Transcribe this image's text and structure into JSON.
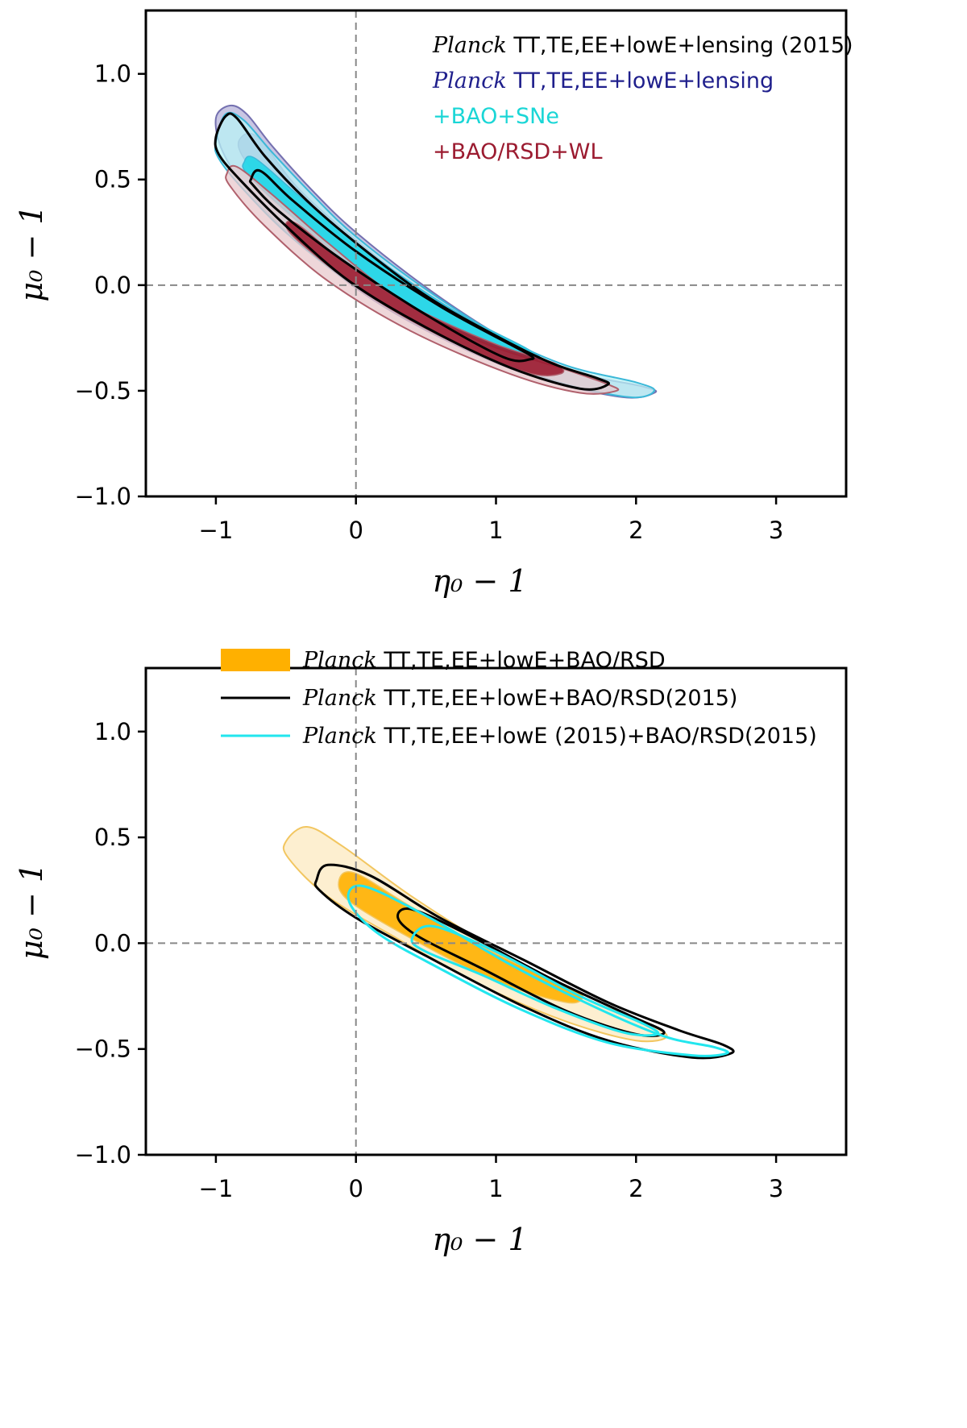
{
  "chart_data": [
    {
      "type": "contour",
      "title": "",
      "xlabel": "η₀ − 1",
      "ylabel": "μ₀ − 1",
      "xlim": [
        -1.5,
        3.5
      ],
      "ylim": [
        -1.0,
        1.3
      ],
      "xticks": [
        -1,
        0,
        1,
        2,
        3
      ],
      "yticks": [
        -1.0,
        -0.5,
        0.0,
        0.5,
        1.0
      ],
      "xtick_labels": [
        "−1",
        "0",
        "1",
        "2",
        "3"
      ],
      "ytick_labels": [
        "−1.0",
        "−0.5",
        "0.0",
        "0.5",
        "1.0"
      ],
      "reference_lines": {
        "x": 0,
        "y": 0
      },
      "legend": [
        {
          "italic": "Planck",
          "text": " TT,TE,EE+lowE+lensing (2015)",
          "color": "#000000"
        },
        {
          "italic": "Planck",
          "text": " TT,TE,EE+lowE+lensing",
          "color": "#1f1f8c"
        },
        {
          "italic": "",
          "text": "+BAO+SNe",
          "color": "#1ad6d6"
        },
        {
          "italic": "",
          "text": "+BAO/RSD+WL",
          "color": "#9b1b30"
        }
      ],
      "series": [
        {
          "name": "Planck TT,TE,EE+lowE+lensing",
          "style": "filled",
          "fill_outer": "#b7b3d9",
          "fill_inner": "#8e89c4",
          "edge": "#7470b0",
          "contour_95": [
            [
              -1.0,
              0.79
            ],
            [
              -0.9,
              0.85
            ],
            [
              -0.78,
              0.81
            ],
            [
              -0.6,
              0.66
            ],
            [
              -0.3,
              0.44
            ],
            [
              0,
              0.25
            ],
            [
              0.5,
              -0.01
            ],
            [
              1.0,
              -0.23
            ],
            [
              1.5,
              -0.4
            ],
            [
              2.05,
              -0.48
            ],
            [
              2.13,
              -0.51
            ],
            [
              1.9,
              -0.53
            ],
            [
              1.3,
              -0.44
            ],
            [
              0.7,
              -0.28
            ],
            [
              0.1,
              -0.06
            ],
            [
              -0.4,
              0.2
            ],
            [
              -0.75,
              0.43
            ],
            [
              -0.95,
              0.63
            ],
            [
              -1.0,
              0.79
            ]
          ],
          "contour_68": [
            [
              -0.83,
              0.69
            ],
            [
              -0.7,
              0.7
            ],
            [
              -0.4,
              0.45
            ],
            [
              0.1,
              0.16
            ],
            [
              0.7,
              -0.14
            ],
            [
              1.3,
              -0.35
            ],
            [
              1.38,
              -0.4
            ],
            [
              1.1,
              -0.38
            ],
            [
              0.5,
              -0.15
            ],
            [
              -0.1,
              0.12
            ],
            [
              -0.55,
              0.4
            ],
            [
              -0.8,
              0.6
            ],
            [
              -0.83,
              0.69
            ]
          ]
        },
        {
          "name": "+BAO+SNe",
          "style": "filled",
          "fill_outer": "#b8f2f5",
          "fill_inner": "#1fd6e8",
          "edge": "#3bb8d8",
          "contour_95": [
            [
              -1.0,
              0.68
            ],
            [
              -0.93,
              0.81
            ],
            [
              -0.8,
              0.78
            ],
            [
              -0.6,
              0.63
            ],
            [
              -0.3,
              0.42
            ],
            [
              0,
              0.23
            ],
            [
              0.5,
              -0.02
            ],
            [
              1.0,
              -0.23
            ],
            [
              1.5,
              -0.38
            ],
            [
              2.0,
              -0.46
            ],
            [
              2.13,
              -0.5
            ],
            [
              1.95,
              -0.53
            ],
            [
              1.4,
              -0.45
            ],
            [
              0.7,
              -0.27
            ],
            [
              0.05,
              -0.03
            ],
            [
              -0.45,
              0.22
            ],
            [
              -0.8,
              0.45
            ],
            [
              -0.98,
              0.6
            ],
            [
              -1.0,
              0.68
            ]
          ],
          "contour_68": [
            [
              -0.8,
              0.58
            ],
            [
              -0.72,
              0.6
            ],
            [
              -0.4,
              0.42
            ],
            [
              0.1,
              0.15
            ],
            [
              0.7,
              -0.12
            ],
            [
              1.22,
              -0.3
            ],
            [
              1.3,
              -0.35
            ],
            [
              1.05,
              -0.34
            ],
            [
              0.5,
              -0.14
            ],
            [
              -0.1,
              0.13
            ],
            [
              -0.55,
              0.38
            ],
            [
              -0.78,
              0.53
            ],
            [
              -0.8,
              0.58
            ]
          ]
        },
        {
          "name": "+BAO/RSD+WL",
          "style": "filled",
          "fill_outer": "#e8c8cc",
          "fill_inner": "#9b1b30",
          "edge": "#b0606c",
          "contour_95": [
            [
              -0.92,
              0.53
            ],
            [
              -0.85,
              0.56
            ],
            [
              -0.6,
              0.43
            ],
            [
              -0.2,
              0.2
            ],
            [
              0.3,
              -0.06
            ],
            [
              0.9,
              -0.27
            ],
            [
              1.5,
              -0.4
            ],
            [
              1.8,
              -0.47
            ],
            [
              1.86,
              -0.5
            ],
            [
              1.6,
              -0.51
            ],
            [
              1.1,
              -0.42
            ],
            [
              0.4,
              -0.22
            ],
            [
              -0.2,
              0.02
            ],
            [
              -0.65,
              0.28
            ],
            [
              -0.9,
              0.47
            ],
            [
              -0.92,
              0.53
            ]
          ],
          "contour_68": [
            [
              -0.5,
              0.28
            ],
            [
              -0.42,
              0.29
            ],
            [
              -0.1,
              0.12
            ],
            [
              0.4,
              -0.1
            ],
            [
              1.0,
              -0.28
            ],
            [
              1.42,
              -0.37
            ],
            [
              1.46,
              -0.42
            ],
            [
              1.2,
              -0.41
            ],
            [
              0.6,
              -0.24
            ],
            [
              0.05,
              -0.03
            ],
            [
              -0.38,
              0.19
            ],
            [
              -0.5,
              0.28
            ]
          ]
        },
        {
          "name": "Planck TT,TE,EE+lowE+lensing (2015)",
          "style": "line",
          "edge": "#000000",
          "contour_95": [
            [
              -1.0,
              0.7
            ],
            [
              -0.93,
              0.8
            ],
            [
              -0.85,
              0.79
            ],
            [
              -0.65,
              0.61
            ],
            [
              -0.35,
              0.4
            ],
            [
              0,
              0.2
            ],
            [
              0.5,
              -0.05
            ],
            [
              1.0,
              -0.24
            ],
            [
              1.4,
              -0.37
            ],
            [
              1.72,
              -0.44
            ],
            [
              1.8,
              -0.47
            ],
            [
              1.6,
              -0.49
            ],
            [
              1.1,
              -0.39
            ],
            [
              0.5,
              -0.2
            ],
            [
              -0.05,
              0.02
            ],
            [
              -0.5,
              0.28
            ],
            [
              -0.83,
              0.5
            ],
            [
              -0.98,
              0.62
            ],
            [
              -1.0,
              0.7
            ]
          ],
          "contour_68": [
            [
              -0.75,
              0.5
            ],
            [
              -0.68,
              0.54
            ],
            [
              -0.45,
              0.4
            ],
            [
              0,
              0.16
            ],
            [
              0.6,
              -0.1
            ],
            [
              1.1,
              -0.28
            ],
            [
              1.24,
              -0.33
            ],
            [
              1.25,
              -0.35
            ],
            [
              1.05,
              -0.34
            ],
            [
              0.5,
              -0.14
            ],
            [
              -0.1,
              0.12
            ],
            [
              -0.55,
              0.35
            ],
            [
              -0.73,
              0.47
            ],
            [
              -0.75,
              0.5
            ]
          ]
        }
      ]
    },
    {
      "type": "contour",
      "title": "",
      "xlabel": "η₀ − 1",
      "ylabel": "μ₀ − 1",
      "xlim": [
        -1.5,
        3.5
      ],
      "ylim": [
        -1.0,
        1.3
      ],
      "xticks": [
        -1,
        0,
        1,
        2,
        3
      ],
      "yticks": [
        -1.0,
        -0.5,
        0.0,
        0.5,
        1.0
      ],
      "xtick_labels": [
        "−1",
        "0",
        "1",
        "2",
        "3"
      ],
      "ytick_labels": [
        "−1.0",
        "−0.5",
        "0.0",
        "0.5",
        "1.0"
      ],
      "reference_lines": {
        "x": 0,
        "y": 0
      },
      "legend": [
        {
          "italic": "Planck",
          "text": " TT,TE,EE+lowE+BAO/RSD",
          "color": "#000000",
          "swatch": "#ffb000",
          "swatch_type": "patch"
        },
        {
          "italic": "Planck",
          "text": " TT,TE,EE+lowE+BAO/RSD(2015)",
          "color": "#000000",
          "swatch": "#000000",
          "swatch_type": "line"
        },
        {
          "italic": "Planck",
          "text": " TT,TE,EE+lowE (2015)+BAO/RSD(2015)",
          "color": "#000000",
          "swatch": "#22e6ee",
          "swatch_type": "line"
        }
      ],
      "series": [
        {
          "name": "Planck TT,TE,EE+lowE+BAO/RSD",
          "style": "filled",
          "fill_outer": "#fce9c0",
          "fill_inner": "#ffb000",
          "edge": "#f2c660",
          "contour_95": [
            [
              -0.5,
              0.48
            ],
            [
              -0.35,
              0.55
            ],
            [
              -0.1,
              0.46
            ],
            [
              0.4,
              0.22
            ],
            [
              1.0,
              -0.03
            ],
            [
              1.6,
              -0.25
            ],
            [
              2.05,
              -0.37
            ],
            [
              2.22,
              -0.44
            ],
            [
              2.0,
              -0.46
            ],
            [
              1.5,
              -0.37
            ],
            [
              0.9,
              -0.2
            ],
            [
              0.3,
              0.02
            ],
            [
              -0.2,
              0.22
            ],
            [
              -0.48,
              0.4
            ],
            [
              -0.5,
              0.48
            ]
          ],
          "contour_68": [
            [
              -0.12,
              0.3
            ],
            [
              0.0,
              0.33
            ],
            [
              0.4,
              0.17
            ],
            [
              1.0,
              -0.05
            ],
            [
              1.5,
              -0.2
            ],
            [
              1.62,
              -0.25
            ],
            [
              1.5,
              -0.28
            ],
            [
              1.0,
              -0.18
            ],
            [
              0.4,
              0.02
            ],
            [
              -0.05,
              0.2
            ],
            [
              -0.12,
              0.3
            ]
          ]
        },
        {
          "name": "Planck TT,TE,EE+lowE+BAO/RSD(2015)",
          "style": "line",
          "edge": "#000000",
          "contour_95": [
            [
              -0.28,
              0.3
            ],
            [
              -0.2,
              0.37
            ],
            [
              0.1,
              0.32
            ],
            [
              0.6,
              0.12
            ],
            [
              1.2,
              -0.08
            ],
            [
              1.8,
              -0.28
            ],
            [
              2.3,
              -0.41
            ],
            [
              2.62,
              -0.48
            ],
            [
              2.68,
              -0.52
            ],
            [
              2.4,
              -0.54
            ],
            [
              1.8,
              -0.46
            ],
            [
              1.2,
              -0.3
            ],
            [
              0.5,
              -0.06
            ],
            [
              0.0,
              0.12
            ],
            [
              -0.26,
              0.25
            ],
            [
              -0.28,
              0.3
            ]
          ],
          "contour_68": [
            [
              0.3,
              0.12
            ],
            [
              0.4,
              0.16
            ],
            [
              0.8,
              0.04
            ],
            [
              1.4,
              -0.17
            ],
            [
              1.95,
              -0.34
            ],
            [
              2.2,
              -0.42
            ],
            [
              2.0,
              -0.43
            ],
            [
              1.5,
              -0.32
            ],
            [
              0.9,
              -0.12
            ],
            [
              0.45,
              0.03
            ],
            [
              0.3,
              0.12
            ]
          ]
        },
        {
          "name": "Planck TT,TE,EE+lowE (2015)+BAO/RSD(2015)",
          "style": "line",
          "edge": "#22e6ee",
          "contour_95": [
            [
              -0.05,
              0.2
            ],
            [
              0.05,
              0.27
            ],
            [
              0.5,
              0.13
            ],
            [
              1.1,
              -0.1
            ],
            [
              1.7,
              -0.3
            ],
            [
              2.2,
              -0.44
            ],
            [
              2.55,
              -0.49
            ],
            [
              2.65,
              -0.52
            ],
            [
              2.4,
              -0.53
            ],
            [
              1.8,
              -0.47
            ],
            [
              1.2,
              -0.32
            ],
            [
              0.6,
              -0.12
            ],
            [
              0.15,
              0.05
            ],
            [
              -0.05,
              0.2
            ]
          ],
          "contour_68": [
            [
              0.4,
              0.02
            ],
            [
              0.55,
              0.08
            ],
            [
              1.0,
              -0.04
            ],
            [
              1.6,
              -0.25
            ],
            [
              2.05,
              -0.38
            ],
            [
              2.15,
              -0.43
            ],
            [
              1.9,
              -0.42
            ],
            [
              1.4,
              -0.3
            ],
            [
              0.9,
              -0.15
            ],
            [
              0.5,
              -0.04
            ],
            [
              0.4,
              0.02
            ]
          ]
        }
      ]
    }
  ]
}
